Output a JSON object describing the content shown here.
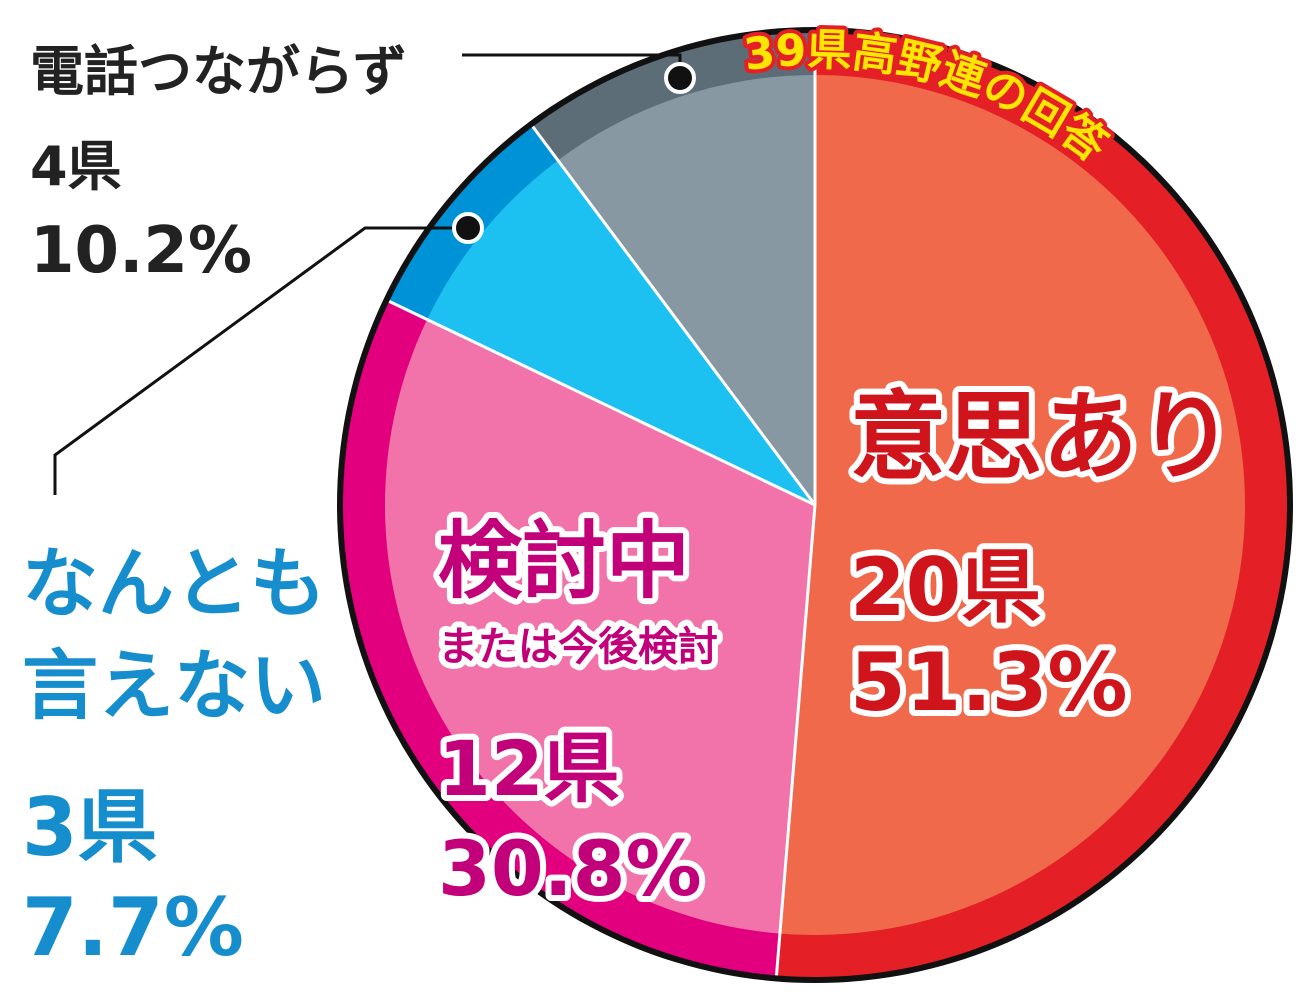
{
  "chart_data": {
    "type": "pie",
    "title": "39県高野連の回答",
    "categories": [
      [
        "意思あり"
      ],
      [
        "検討中",
        "または今後検討"
      ],
      [
        "なんとも",
        "言えない"
      ],
      [
        "電話つながらず"
      ]
    ],
    "values": [
      51.3,
      30.8,
      7.7,
      10.2
    ],
    "value_labels": [
      "51.3%",
      "30.8%",
      "7.7%",
      "10.2%"
    ],
    "counts": [
      20,
      12,
      3,
      4
    ],
    "count_labels": [
      "20県",
      "12県",
      "3県",
      "4県"
    ],
    "colors": [
      "#f0694a",
      "#f173a9",
      "#1dc1f1",
      "#8898a3"
    ],
    "rim_colors": [
      "#e41f26",
      "#e2007e",
      "#0092d6",
      "#5d6d78"
    ],
    "label_colors": [
      "#d0141c",
      "#c2007a",
      "#168dcc",
      "#222222"
    ]
  }
}
